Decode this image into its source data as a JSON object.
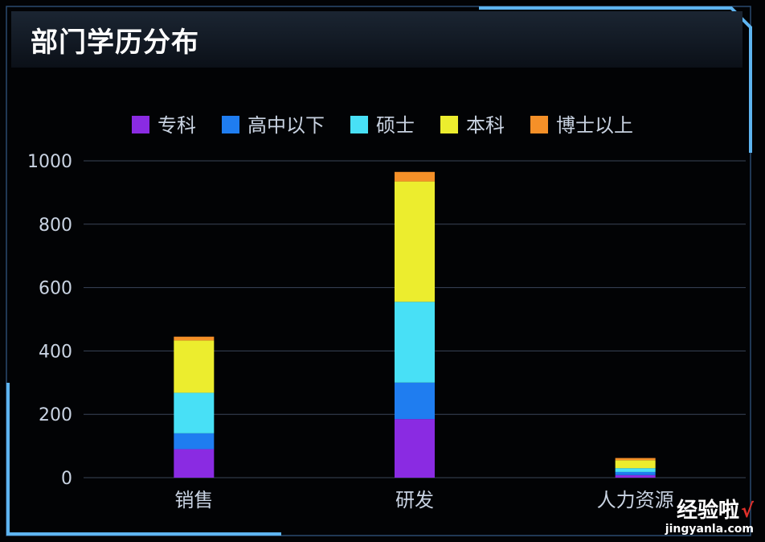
{
  "title": "部门学历分布",
  "colors": {
    "专科": "#8a2be2",
    "高中以下": "#1f7df0",
    "硕士": "#48e0f6",
    "本科": "#eced2e",
    "博士以上": "#f59028",
    "axis_text": "#c9d3e2",
    "grid": "#3a4458",
    "frame": "#5eb4f0"
  },
  "watermark": {
    "main": "经验啦",
    "url": "jingyanla.com"
  },
  "chart_data": {
    "type": "bar",
    "stacked": true,
    "categories": [
      "销售",
      "研发",
      "人力资源"
    ],
    "series": [
      {
        "name": "专科",
        "values": [
          90,
          185,
          8
        ]
      },
      {
        "name": "高中以下",
        "values": [
          50,
          115,
          10
        ]
      },
      {
        "name": "硕士",
        "values": [
          128,
          255,
          12
        ]
      },
      {
        "name": "本科",
        "values": [
          165,
          380,
          25
        ]
      },
      {
        "name": "博士以上",
        "values": [
          12,
          30,
          7
        ]
      }
    ],
    "ylim": [
      0,
      1000
    ],
    "yticks": [
      0,
      200,
      400,
      600,
      800,
      1000
    ],
    "grid": true,
    "legend_position": "top"
  }
}
